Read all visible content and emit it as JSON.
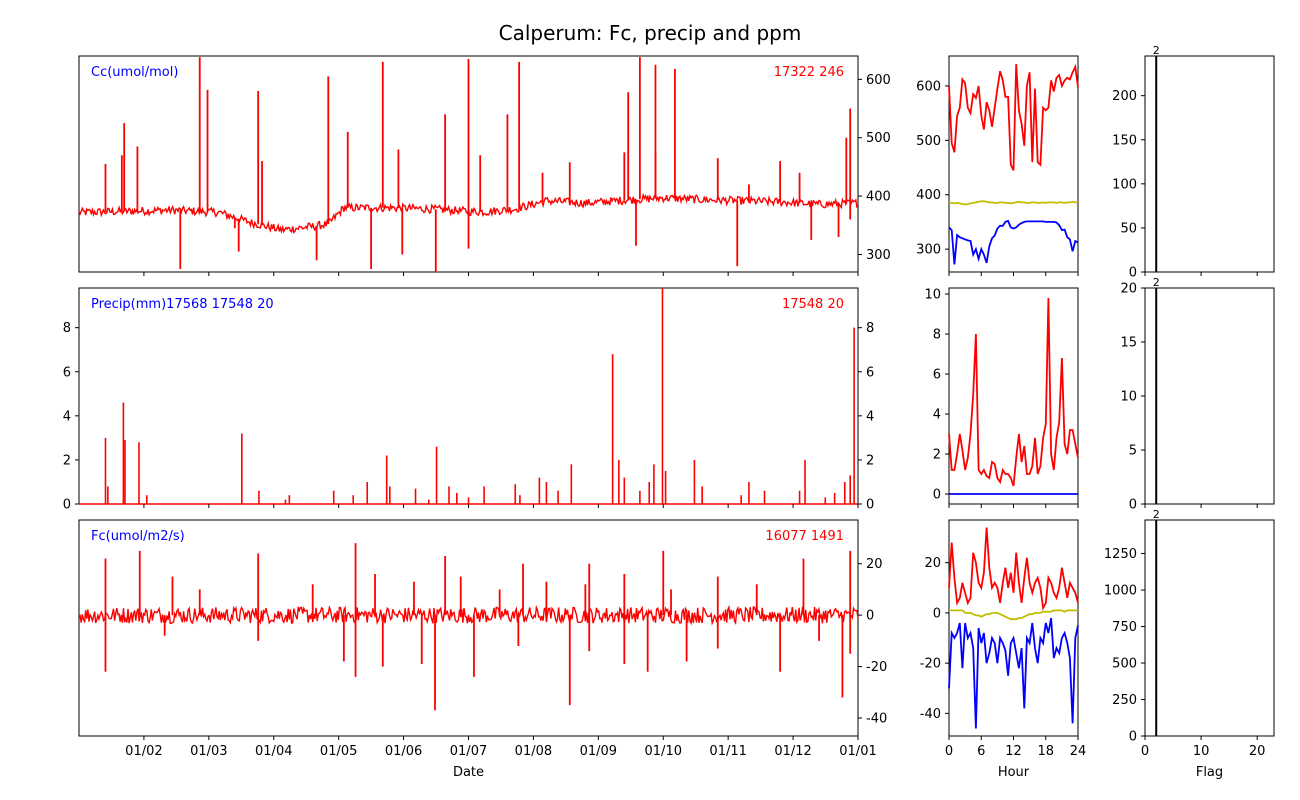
{
  "title": "Calperum: Fc, precip and ppm",
  "colors": {
    "series": "#ff0000",
    "low": "#0000ff",
    "mid": "#bfbf00",
    "flag": "#000000",
    "note_blue": "#0000ff",
    "note_red": "#ff0000"
  },
  "chart_data": [
    {
      "id": "cc_series",
      "type": "line",
      "label": "Cc(umol/mol)",
      "stats": "17322 246",
      "xlabel": "",
      "right_axis_ticks": [
        "300",
        "400",
        "500",
        "600"
      ],
      "ylim": [
        270,
        640
      ],
      "baseline": [
        [
          0,
          372
        ],
        [
          0.06,
          374
        ],
        [
          0.12,
          376
        ],
        [
          0.18,
          372
        ],
        [
          0.22,
          355
        ],
        [
          0.26,
          342
        ],
        [
          0.3,
          348
        ],
        [
          0.32,
          352
        ],
        [
          0.34,
          380
        ],
        [
          0.4,
          380
        ],
        [
          0.45,
          378
        ],
        [
          0.5,
          374
        ],
        [
          0.52,
          373
        ],
        [
          0.56,
          378
        ],
        [
          0.6,
          392
        ],
        [
          0.65,
          388
        ],
        [
          0.7,
          393
        ],
        [
          0.75,
          397
        ],
        [
          0.8,
          394
        ],
        [
          0.85,
          392
        ],
        [
          0.9,
          390
        ],
        [
          0.95,
          386
        ],
        [
          1,
          388
        ]
      ],
      "spikes": [
        [
          0.034,
          455
        ],
        [
          0.055,
          470
        ],
        [
          0.058,
          525
        ],
        [
          0.075,
          485
        ],
        [
          0.155,
          638
        ],
        [
          0.165,
          582
        ],
        [
          0.23,
          580
        ],
        [
          0.235,
          460
        ],
        [
          0.32,
          605
        ],
        [
          0.345,
          510
        ],
        [
          0.39,
          630
        ],
        [
          0.41,
          480
        ],
        [
          0.47,
          540
        ],
        [
          0.5,
          635
        ],
        [
          0.515,
          470
        ],
        [
          0.55,
          540
        ],
        [
          0.565,
          630
        ],
        [
          0.595,
          440
        ],
        [
          0.63,
          458
        ],
        [
          0.705,
          578
        ],
        [
          0.7,
          475
        ],
        [
          0.72,
          638
        ],
        [
          0.74,
          625
        ],
        [
          0.74,
          475
        ],
        [
          0.765,
          618
        ],
        [
          0.82,
          465
        ],
        [
          0.86,
          420
        ],
        [
          0.9,
          460
        ],
        [
          0.925,
          440
        ],
        [
          0.99,
          550
        ],
        [
          0.985,
          500
        ]
      ],
      "dips": [
        [
          0.13,
          275
        ],
        [
          0.2,
          345
        ],
        [
          0.205,
          305
        ],
        [
          0.305,
          290
        ],
        [
          0.375,
          275
        ],
        [
          0.415,
          300
        ],
        [
          0.458,
          270
        ],
        [
          0.5,
          310
        ],
        [
          0.715,
          315
        ],
        [
          0.845,
          280
        ],
        [
          0.94,
          325
        ],
        [
          0.975,
          330
        ],
        [
          0.99,
          360
        ]
      ],
      "hourly": {
        "hours": [
          0,
          0.5,
          1,
          1.5,
          2,
          2.5,
          3,
          3.5,
          4,
          4.5,
          5,
          5.5,
          6,
          6.5,
          7,
          7.5,
          8,
          8.5,
          9,
          9.5,
          10,
          10.5,
          11,
          11.5,
          12,
          12.5,
          13,
          13.5,
          14,
          14.5,
          15,
          15.5,
          16,
          16.5,
          17,
          17.5,
          18,
          18.5,
          19,
          19.5,
          20,
          20.5,
          21,
          21.5,
          22,
          22.5,
          23,
          23.5,
          24
        ],
        "max": [
          600,
          495,
          478,
          545,
          560,
          612,
          605,
          560,
          550,
          585,
          578,
          600,
          545,
          520,
          570,
          555,
          525,
          560,
          595,
          627,
          610,
          580,
          580,
          455,
          445,
          640,
          555,
          530,
          490,
          600,
          625,
          460,
          595,
          460,
          455,
          560,
          555,
          560,
          610,
          590,
          615,
          620,
          600,
          610,
          615,
          612,
          625,
          635,
          598
        ],
        "mean": [
          386,
          385,
          384,
          385,
          384,
          383,
          382,
          383,
          384,
          385,
          386,
          387,
          388,
          388,
          387,
          386,
          386,
          385,
          385,
          386,
          386,
          385,
          385,
          384,
          385,
          386,
          387,
          386,
          386,
          385,
          385,
          386,
          386,
          385,
          385,
          386,
          385,
          386,
          386,
          386,
          385,
          386,
          386,
          385,
          386,
          386,
          387,
          386,
          386
        ],
        "min": [
          340,
          335,
          272,
          326,
          322,
          320,
          318,
          316,
          315,
          290,
          300,
          282,
          300,
          290,
          275,
          305,
          320,
          325,
          338,
          343,
          343,
          350,
          352,
          340,
          338,
          340,
          345,
          348,
          350,
          351,
          351,
          351,
          351,
          351,
          351,
          351,
          350,
          350,
          350,
          350,
          349,
          344,
          335,
          336,
          322,
          318,
          296,
          315,
          312
        ]
      },
      "hourly_ticks": [
        "300",
        "400",
        "500",
        "600"
      ],
      "hourly_ylim": [
        258,
        655
      ],
      "flag_ticks": [
        "0",
        "50",
        "100",
        "150",
        "200"
      ],
      "flag_count_label": "2",
      "flag_ylim": [
        0,
        245
      ]
    },
    {
      "id": "precip_series",
      "type": "line",
      "label": "Precip(mm)17568 17548 20",
      "stats": "17548 20",
      "left_axis_ticks": [
        "0",
        "2",
        "4",
        "6",
        "8"
      ],
      "right_axis_ticks": [
        "0",
        "2",
        "4",
        "6",
        "8"
      ],
      "ylim": [
        0,
        9.8
      ],
      "spikes": [
        [
          0.034,
          3.0
        ],
        [
          0.037,
          0.8
        ],
        [
          0.057,
          4.6
        ],
        [
          0.059,
          2.9
        ],
        [
          0.077,
          2.8
        ],
        [
          0.087,
          0.4
        ],
        [
          0.209,
          3.2
        ],
        [
          0.231,
          0.6
        ],
        [
          0.265,
          0.2
        ],
        [
          0.27,
          0.4
        ],
        [
          0.327,
          0.6
        ],
        [
          0.352,
          0.4
        ],
        [
          0.37,
          1.0
        ],
        [
          0.395,
          2.2
        ],
        [
          0.399,
          0.8
        ],
        [
          0.432,
          0.7
        ],
        [
          0.449,
          0.2
        ],
        [
          0.459,
          2.6
        ],
        [
          0.475,
          0.8
        ],
        [
          0.485,
          0.5
        ],
        [
          0.5,
          0.3
        ],
        [
          0.52,
          0.8
        ],
        [
          0.56,
          0.9
        ],
        [
          0.566,
          0.4
        ],
        [
          0.591,
          1.2
        ],
        [
          0.6,
          1.0
        ],
        [
          0.615,
          0.6
        ],
        [
          0.632,
          1.8
        ],
        [
          0.685,
          6.8
        ],
        [
          0.693,
          2.0
        ],
        [
          0.7,
          1.2
        ],
        [
          0.72,
          0.6
        ],
        [
          0.732,
          1.0
        ],
        [
          0.738,
          1.8
        ],
        [
          0.749,
          9.8
        ],
        [
          0.753,
          1.5
        ],
        [
          0.79,
          2.0
        ],
        [
          0.8,
          0.8
        ],
        [
          0.8,
          0.7
        ],
        [
          0.85,
          0.4
        ],
        [
          0.86,
          1.0
        ],
        [
          0.88,
          0.6
        ],
        [
          0.925,
          0.6
        ],
        [
          0.932,
          2.0
        ],
        [
          0.958,
          0.3
        ],
        [
          0.97,
          0.5
        ],
        [
          0.983,
          1.0
        ],
        [
          0.99,
          1.3
        ],
        [
          0.995,
          8.0
        ]
      ],
      "hourly": {
        "hours": [
          0,
          0.5,
          1,
          1.5,
          2,
          2.5,
          3,
          3.5,
          4,
          4.5,
          5,
          5.5,
          6,
          6.5,
          7,
          7.5,
          8,
          8.5,
          9,
          9.5,
          10,
          10.5,
          11,
          11.5,
          12,
          12.5,
          13,
          13.5,
          14,
          14.5,
          15,
          15.5,
          16,
          16.5,
          17,
          17.5,
          18,
          18.5,
          19,
          19.5,
          20,
          20.5,
          21,
          21.5,
          22,
          22.5,
          23,
          23.5,
          24
        ],
        "max": [
          3.0,
          1.2,
          1.2,
          2.0,
          3.0,
          2.2,
          1.2,
          1.8,
          3.0,
          5.0,
          8.0,
          1.2,
          1.0,
          1.2,
          0.9,
          0.8,
          1.6,
          1.5,
          0.8,
          0.6,
          1.2,
          1.0,
          1.0,
          0.8,
          0.4,
          1.8,
          3.0,
          1.6,
          2.4,
          1.0,
          1.0,
          1.4,
          2.8,
          1.0,
          1.4,
          2.8,
          3.5,
          9.8,
          2.0,
          1.2,
          2.8,
          3.6,
          6.8,
          2.5,
          2.0,
          3.2,
          3.2,
          2.5,
          1.8
        ],
        "min": [
          0,
          0,
          0,
          0,
          0,
          0,
          0,
          0,
          0,
          0,
          0,
          0,
          0,
          0,
          0,
          0,
          0,
          0,
          0,
          0,
          0,
          0,
          0,
          0,
          0,
          0,
          0,
          0,
          0,
          0,
          0,
          0,
          0,
          0,
          0,
          0,
          0,
          0,
          0,
          0,
          0,
          0,
          0,
          0,
          0,
          0,
          0,
          0,
          0
        ]
      },
      "hourly_ticks": [
        "0",
        "2",
        "4",
        "6",
        "8",
        "10"
      ],
      "hourly_ylim": [
        -0.5,
        10.3
      ],
      "flag_ticks": [
        "0",
        "5",
        "10",
        "15",
        "20"
      ],
      "flag_count_label": "2",
      "flag_ylim": [
        0,
        20
      ]
    },
    {
      "id": "fc_series",
      "type": "line",
      "label": "Fc(umol/m2/s)",
      "stats": "16077 1491",
      "xlabel": "Date",
      "x_ticks": [
        "01/02",
        "01/03",
        "01/04",
        "01/05",
        "01/06",
        "01/07",
        "01/08",
        "01/09",
        "01/10",
        "01/11",
        "01/12",
        "01/01"
      ],
      "right_axis_ticks": [
        "-40",
        "-20",
        "0",
        "20"
      ],
      "ylim": [
        -47,
        37
      ],
      "spikes": [
        [
          0.034,
          22
        ],
        [
          0.078,
          25
        ],
        [
          0.12,
          15
        ],
        [
          0.155,
          10
        ],
        [
          0.23,
          24
        ],
        [
          0.3,
          12
        ],
        [
          0.355,
          28
        ],
        [
          0.38,
          16
        ],
        [
          0.43,
          13
        ],
        [
          0.47,
          23
        ],
        [
          0.49,
          15
        ],
        [
          0.54,
          10
        ],
        [
          0.57,
          20
        ],
        [
          0.6,
          13
        ],
        [
          0.65,
          12
        ],
        [
          0.7,
          16
        ],
        [
          0.75,
          25
        ],
        [
          0.76,
          10
        ],
        [
          0.82,
          15
        ],
        [
          0.87,
          12
        ],
        [
          0.93,
          22
        ],
        [
          0.99,
          25
        ],
        [
          0.655,
          20
        ]
      ],
      "dips": [
        [
          0.034,
          -22
        ],
        [
          0.11,
          -8
        ],
        [
          0.23,
          -10
        ],
        [
          0.34,
          -18
        ],
        [
          0.355,
          -24
        ],
        [
          0.39,
          -20
        ],
        [
          0.44,
          -19
        ],
        [
          0.457,
          -37
        ],
        [
          0.507,
          -24
        ],
        [
          0.564,
          -12
        ],
        [
          0.63,
          -35
        ],
        [
          0.655,
          -14
        ],
        [
          0.7,
          -19
        ],
        [
          0.73,
          -22
        ],
        [
          0.78,
          -18
        ],
        [
          0.82,
          -13
        ],
        [
          0.9,
          -22
        ],
        [
          0.95,
          -10
        ],
        [
          0.98,
          -32
        ],
        [
          0.99,
          -15
        ]
      ],
      "hourly": {
        "hours": [
          0,
          0.5,
          1,
          1.5,
          2,
          2.5,
          3,
          3.5,
          4,
          4.5,
          5,
          5.5,
          6,
          6.5,
          7,
          7.5,
          8,
          8.5,
          9,
          9.5,
          10,
          10.5,
          11,
          11.5,
          12,
          12.5,
          13,
          13.5,
          14,
          14.5,
          15,
          15.5,
          16,
          16.5,
          17,
          17.5,
          18,
          18.5,
          19,
          19.5,
          20,
          20.5,
          21,
          21.5,
          22,
          22.5,
          23,
          23.5,
          24
        ],
        "max": [
          10,
          28,
          14,
          4,
          6,
          12,
          8,
          4,
          6,
          24,
          20,
          12,
          10,
          16,
          34,
          18,
          10,
          12,
          10,
          4,
          12,
          18,
          10,
          16,
          8,
          24,
          12,
          4,
          14,
          22,
          12,
          8,
          12,
          14,
          10,
          2,
          4,
          14,
          12,
          8,
          6,
          10,
          18,
          12,
          6,
          12,
          10,
          8,
          4
        ],
        "mean": [
          1,
          1,
          1,
          1,
          1,
          1,
          0,
          0,
          0,
          -0.5,
          -1,
          -1,
          -1.5,
          -1,
          -0.5,
          -0.5,
          0,
          0,
          0,
          -0.5,
          -1,
          -1.5,
          -2,
          -2.5,
          -2.5,
          -2.5,
          -2,
          -2,
          -1.5,
          -1,
          -0.5,
          -0.5,
          0,
          0,
          0,
          0.5,
          0.5,
          0.5,
          0.5,
          1,
          1,
          1,
          1,
          0.5,
          1,
          1,
          1,
          1,
          1
        ],
        "min": [
          -30,
          -8,
          -10,
          -8,
          -4,
          -22,
          -4,
          -10,
          -8,
          -14,
          -46,
          -6,
          -12,
          -8,
          -20,
          -16,
          -10,
          -12,
          -20,
          -10,
          -12,
          -15,
          -25,
          -12,
          -10,
          -16,
          -22,
          -14,
          -38,
          -10,
          -12,
          -4,
          -14,
          -20,
          -10,
          -12,
          -4,
          -8,
          -2,
          -18,
          -14,
          -16,
          -10,
          -8,
          -12,
          -18,
          -44,
          -10,
          -5
        ]
      },
      "hourly_ticks": [
        "-40",
        "-20",
        "0",
        "20"
      ],
      "hourly_ylim": [
        -49,
        37
      ],
      "hour_ticks": [
        "0",
        "6",
        "12",
        "18",
        "24"
      ],
      "hour_label": "Hour",
      "flag_ticks": [
        "0",
        "250",
        "500",
        "750",
        "1000",
        "1250"
      ],
      "flag_count_label": "2",
      "flag_ylim": [
        0,
        1480
      ],
      "flag_x_ticks": [
        "0",
        "10",
        "20"
      ],
      "flag_label": "Flag"
    }
  ]
}
